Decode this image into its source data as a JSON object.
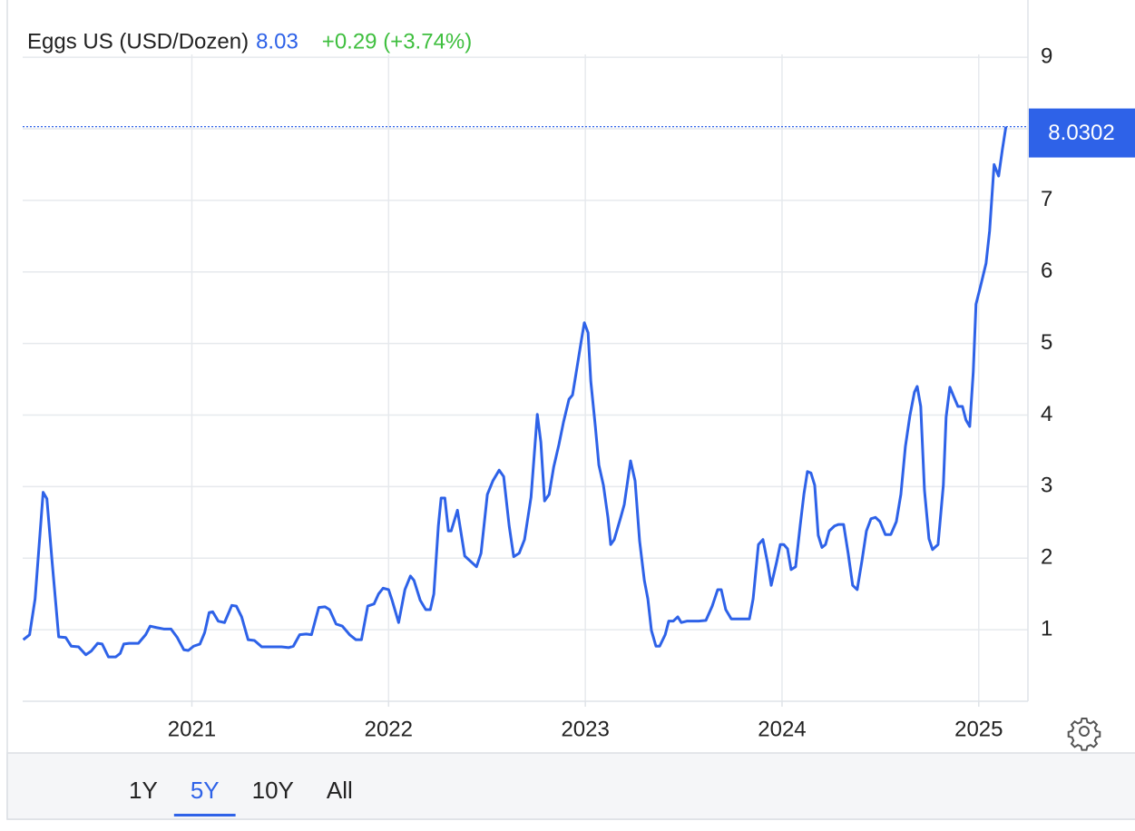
{
  "chart_data": {
    "type": "line",
    "title": "Eggs US (USD/Dozen)",
    "price": "8.03",
    "change": "+0.29 (+3.74%)",
    "color": "#2e62e8",
    "grid": true,
    "xlim": [
      2020.14,
      2025.25
    ],
    "xticks": [
      2021,
      2022,
      2023,
      2024,
      2025
    ],
    "ylim": [
      0,
      9.8
    ],
    "yticks": [
      1,
      2,
      3,
      4,
      5,
      6,
      7,
      8,
      9
    ],
    "x": [
      2020.143,
      2020.175,
      2020.203,
      2020.244,
      2020.263,
      2020.29,
      2020.323,
      2020.359,
      2020.387,
      2020.424,
      2020.461,
      2020.488,
      2020.521,
      2020.544,
      2020.576,
      2020.613,
      2020.636,
      2020.654,
      2020.682,
      2020.728,
      2020.765,
      2020.788,
      2020.82,
      2020.857,
      2020.894,
      2020.926,
      2020.959,
      2020.982,
      2021.009,
      2021.041,
      2021.065,
      2021.088,
      2021.106,
      2021.134,
      2021.166,
      2021.203,
      2021.226,
      2021.253,
      2021.286,
      2021.318,
      2021.355,
      2021.41,
      2021.456,
      2021.493,
      2021.516,
      2021.548,
      2021.581,
      2021.608,
      2021.645,
      2021.677,
      2021.7,
      2021.733,
      2021.765,
      2021.802,
      2021.834,
      2021.862,
      2021.894,
      2021.926,
      2021.949,
      2021.972,
      2022.0,
      2022.018,
      2022.051,
      2022.083,
      2022.111,
      2022.129,
      2022.161,
      2022.189,
      2022.212,
      2022.23,
      2022.253,
      2022.267,
      2022.286,
      2022.304,
      2022.318,
      2022.35,
      2022.387,
      2022.447,
      2022.47,
      2022.502,
      2022.53,
      2022.562,
      2022.585,
      2022.613,
      2022.636,
      2022.664,
      2022.691,
      2022.724,
      2022.756,
      2022.774,
      2022.793,
      2022.816,
      2022.839,
      2022.866,
      2022.889,
      2022.917,
      2022.935,
      2022.954,
      2022.982,
      2022.995,
      2023.014,
      2023.028,
      2023.051,
      2023.069,
      2023.092,
      2023.115,
      2023.129,
      2023.147,
      2023.18,
      2023.198,
      2023.23,
      2023.253,
      2023.276,
      2023.3,
      2023.318,
      2023.336,
      2023.359,
      2023.378,
      2023.406,
      2023.424,
      2023.447,
      2023.47,
      2023.488,
      2023.516,
      2023.544,
      2023.576,
      2023.613,
      2023.645,
      2023.673,
      2023.691,
      2023.714,
      2023.742,
      2023.774,
      2023.806,
      2023.834,
      2023.853,
      2023.88,
      2023.903,
      2023.926,
      2023.945,
      2023.972,
      2023.991,
      2024.009,
      2024.028,
      2024.046,
      2024.069,
      2024.092,
      2024.111,
      2024.129,
      2024.147,
      2024.166,
      2024.184,
      2024.203,
      2024.221,
      2024.24,
      2024.267,
      2024.286,
      2024.313,
      2024.336,
      2024.359,
      2024.382,
      2024.406,
      2024.429,
      2024.452,
      2024.475,
      2024.498,
      2024.525,
      2024.553,
      2024.581,
      2024.604,
      2024.627,
      2024.65,
      2024.673,
      2024.687,
      2024.705,
      2024.724,
      2024.747,
      2024.765,
      2024.793,
      2024.82,
      2024.834,
      2024.853,
      2024.871,
      2024.894,
      2024.917,
      2024.935,
      2024.954,
      2024.972,
      2024.986,
      2025.009,
      2025.037,
      2025.055,
      2025.078,
      2025.101,
      2025.12,
      2025.138
    ],
    "values": [
      0.86,
      0.93,
      1.43,
      2.92,
      2.83,
      1.94,
      0.9,
      0.89,
      0.77,
      0.76,
      0.65,
      0.7,
      0.81,
      0.8,
      0.62,
      0.62,
      0.67,
      0.8,
      0.81,
      0.81,
      0.93,
      1.05,
      1.03,
      1.01,
      1.01,
      0.89,
      0.72,
      0.71,
      0.77,
      0.8,
      0.96,
      1.24,
      1.25,
      1.12,
      1.1,
      1.34,
      1.33,
      1.18,
      0.86,
      0.85,
      0.76,
      0.76,
      0.76,
      0.75,
      0.77,
      0.93,
      0.94,
      0.93,
      1.31,
      1.32,
      1.28,
      1.08,
      1.05,
      0.93,
      0.86,
      0.86,
      1.33,
      1.36,
      1.5,
      1.58,
      1.56,
      1.41,
      1.1,
      1.56,
      1.75,
      1.69,
      1.41,
      1.28,
      1.28,
      1.5,
      2.45,
      2.84,
      2.84,
      2.38,
      2.38,
      2.67,
      2.03,
      1.88,
      2.07,
      2.89,
      3.08,
      3.23,
      3.14,
      2.45,
      2.02,
      2.07,
      2.26,
      2.85,
      4.01,
      3.62,
      2.8,
      2.89,
      3.27,
      3.59,
      3.9,
      4.22,
      4.28,
      4.6,
      5.08,
      5.29,
      5.15,
      4.47,
      3.84,
      3.3,
      3.02,
      2.57,
      2.19,
      2.26,
      2.57,
      2.75,
      3.36,
      3.08,
      2.24,
      1.69,
      1.43,
      0.99,
      0.77,
      0.77,
      0.93,
      1.12,
      1.12,
      1.18,
      1.1,
      1.12,
      1.12,
      1.12,
      1.13,
      1.33,
      1.56,
      1.56,
      1.28,
      1.15,
      1.15,
      1.15,
      1.15,
      1.43,
      2.19,
      2.26,
      1.94,
      1.62,
      1.94,
      2.19,
      2.19,
      2.13,
      1.84,
      1.88,
      2.45,
      2.89,
      3.21,
      3.19,
      3.02,
      2.32,
      2.15,
      2.19,
      2.38,
      2.45,
      2.47,
      2.47,
      2.07,
      1.62,
      1.56,
      1.96,
      2.38,
      2.55,
      2.57,
      2.51,
      2.33,
      2.33,
      2.51,
      2.89,
      3.56,
      3.99,
      4.32,
      4.4,
      4.12,
      2.95,
      2.27,
      2.12,
      2.19,
      3.02,
      3.97,
      4.39,
      4.27,
      4.12,
      4.12,
      3.93,
      3.84,
      4.6,
      5.55,
      5.8,
      6.12,
      6.57,
      7.5,
      7.34,
      7.71,
      8.0302
    ],
    "range_buttons": [
      "1Y",
      "5Y",
      "10Y",
      "All"
    ],
    "active_range": 1
  }
}
